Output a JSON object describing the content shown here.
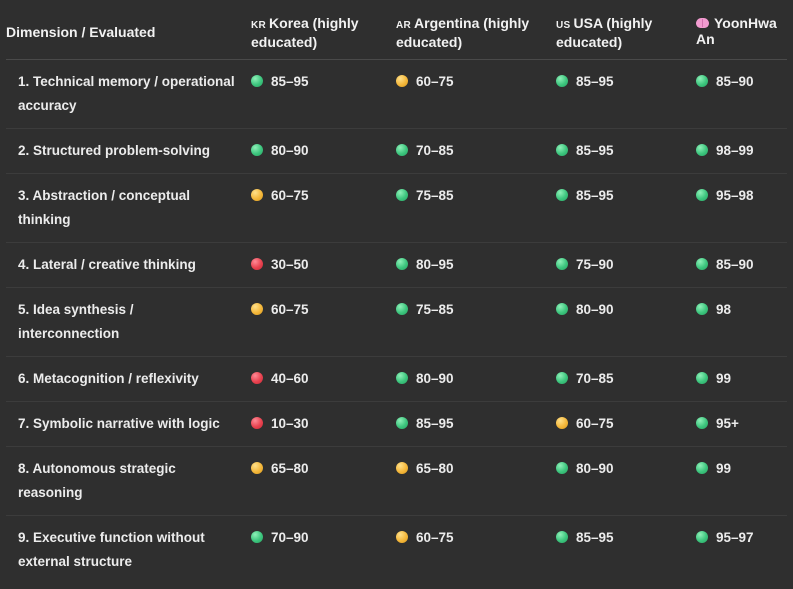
{
  "headers": [
    {
      "flag": "",
      "label": "Dimension / Evaluated",
      "icon": ""
    },
    {
      "flag": "KR",
      "label": "Korea (highly educated)",
      "icon": "korea-flag-icon"
    },
    {
      "flag": "AR",
      "label": "Argentina (highly educated)",
      "icon": "argentina-flag-icon"
    },
    {
      "flag": "US",
      "label": "USA (highly educated)",
      "icon": "usa-flag-icon"
    },
    {
      "flag": "",
      "label": "YoonHwa An",
      "icon": "brain-icon"
    }
  ],
  "status_colors": {
    "green": "#3cc57d",
    "yellow": "#f4b73a",
    "red": "#e8424f"
  },
  "rows": [
    {
      "dimension": "1. Technical memory / operational accuracy",
      "cells": [
        {
          "status": "green",
          "value": "85–95"
        },
        {
          "status": "yellow",
          "value": "60–75"
        },
        {
          "status": "green",
          "value": "85–95"
        },
        {
          "status": "green",
          "value": "85–90"
        }
      ]
    },
    {
      "dimension": "2. Structured problem-solving",
      "cells": [
        {
          "status": "green",
          "value": "80–90"
        },
        {
          "status": "green",
          "value": "70–85"
        },
        {
          "status": "green",
          "value": "85–95"
        },
        {
          "status": "green",
          "value": "98–99"
        }
      ]
    },
    {
      "dimension": "3. Abstraction / conceptual thinking",
      "cells": [
        {
          "status": "yellow",
          "value": "60–75"
        },
        {
          "status": "green",
          "value": "75–85"
        },
        {
          "status": "green",
          "value": "85–95"
        },
        {
          "status": "green",
          "value": "95–98"
        }
      ]
    },
    {
      "dimension": "4. Lateral / creative thinking",
      "cells": [
        {
          "status": "red",
          "value": "30–50"
        },
        {
          "status": "green",
          "value": "80–95"
        },
        {
          "status": "green",
          "value": "75–90"
        },
        {
          "status": "green",
          "value": "85–90"
        }
      ]
    },
    {
      "dimension": "5. Idea synthesis / interconnection",
      "cells": [
        {
          "status": "yellow",
          "value": "60–75"
        },
        {
          "status": "green",
          "value": "75–85"
        },
        {
          "status": "green",
          "value": "80–90"
        },
        {
          "status": "green",
          "value": "98"
        }
      ]
    },
    {
      "dimension": "6. Metacognition / reflexivity",
      "cells": [
        {
          "status": "red",
          "value": "40–60"
        },
        {
          "status": "green",
          "value": "80–90"
        },
        {
          "status": "green",
          "value": "70–85"
        },
        {
          "status": "green",
          "value": "99"
        }
      ]
    },
    {
      "dimension": "7. Symbolic narrative with logic",
      "cells": [
        {
          "status": "red",
          "value": "10–30"
        },
        {
          "status": "green",
          "value": "85–95"
        },
        {
          "status": "yellow",
          "value": "60–75"
        },
        {
          "status": "green",
          "value": "95+"
        }
      ]
    },
    {
      "dimension": "8. Autonomous strategic reasoning",
      "cells": [
        {
          "status": "yellow",
          "value": "65–80"
        },
        {
          "status": "yellow",
          "value": "65–80"
        },
        {
          "status": "green",
          "value": "80–90"
        },
        {
          "status": "green",
          "value": "99"
        }
      ]
    },
    {
      "dimension": "9. Executive function without external structure",
      "cells": [
        {
          "status": "green",
          "value": "70–90"
        },
        {
          "status": "yellow",
          "value": "60–75"
        },
        {
          "status": "green",
          "value": "85–95"
        },
        {
          "status": "green",
          "value": "95–97"
        }
      ]
    }
  ]
}
